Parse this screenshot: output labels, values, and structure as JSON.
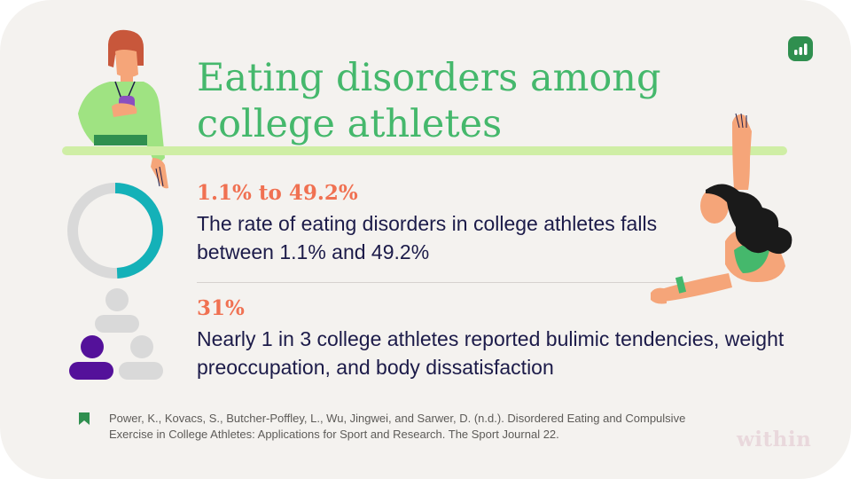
{
  "title": "Eating disorders among college athletes",
  "stats": [
    {
      "value": "1.1% to 49.2%",
      "description": "The rate of eating disorders in college athletes falls between 1.1% and 49.2%",
      "ring_fraction": 0.492
    },
    {
      "value": "31%",
      "description": "Nearly 1 in 3 college athletes reported bulimic tendencies, weight preoccupation, and body dissatisfaction",
      "highlighted_people": 1,
      "total_people": 3
    }
  ],
  "source": "Power, K., Kovacs, S., Butcher-Poffley, L., Wu, Jingwei, and Sarwer, D. (n.d.). Disordered Eating and Compulsive Exercise in College Athletes: Applications for Sport and Research. The Sport Journal 22.",
  "brand": "within",
  "icons": {
    "badge": "bar-chart-icon",
    "source_marker": "bookmark-icon",
    "donut": "donut-chart-icon",
    "people": "people-icon"
  },
  "colors": {
    "background": "#f4f2ef",
    "title": "#45b86c",
    "accent_rule": "#cfeea5",
    "stat_value": "#f07152",
    "text": "#1c1b49",
    "donut_fill": "#14b1b8",
    "donut_track": "#d9d9d9",
    "person_highlight": "#54119a",
    "person_muted": "#d9d9d9",
    "brand_mark": "#e9d8dc"
  }
}
